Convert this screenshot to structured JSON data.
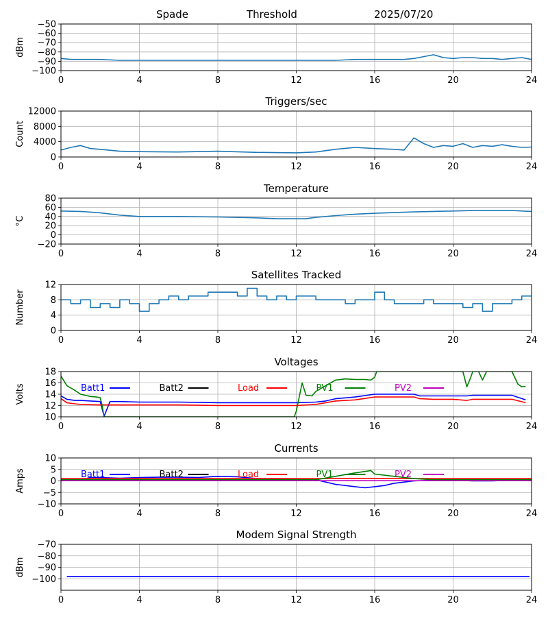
{
  "header": {
    "station": "Spade",
    "kind": "Threshold",
    "date": "2025/07/20"
  },
  "chart_data": [
    {
      "id": "threshold",
      "type": "line",
      "title": "",
      "xlabel": "",
      "ylabel": "dBm",
      "xlim": [
        0,
        24
      ],
      "ylim": [
        -100,
        -50
      ],
      "xticks": [
        0,
        4,
        8,
        12,
        16,
        20,
        24
      ],
      "yticks": [
        -100,
        -90,
        -80,
        -70,
        -60,
        -50
      ],
      "grid": true,
      "legend": [],
      "series": [
        {
          "color": "#1f77b4",
          "x": [
            0,
            0.5,
            1,
            1.5,
            2,
            3,
            4,
            6,
            8,
            10,
            12,
            13,
            14,
            15,
            16,
            17,
            17.5,
            18,
            18.5,
            19,
            19.5,
            20,
            20.5,
            21,
            21.5,
            22,
            22.5,
            23,
            23.5,
            24
          ],
          "y": [
            -87,
            -88,
            -88,
            -88,
            -88,
            -89,
            -89,
            -89,
            -89,
            -89,
            -89,
            -89,
            -89,
            -88,
            -88,
            -88,
            -88,
            -87,
            -85,
            -83,
            -86,
            -87,
            -86,
            -86,
            -87,
            -87,
            -88,
            -87,
            -86,
            -88
          ]
        }
      ]
    },
    {
      "id": "triggers",
      "type": "line",
      "title": "Triggers/sec",
      "xlabel": "",
      "ylabel": "Count",
      "xlim": [
        0,
        24
      ],
      "ylim": [
        0,
        12000
      ],
      "xticks": [
        0,
        4,
        8,
        12,
        16,
        20,
        24
      ],
      "yticks": [
        0,
        4000,
        8000,
        12000
      ],
      "grid": true,
      "legend": [],
      "series": [
        {
          "color": "#1f77b4",
          "x": [
            0,
            0.5,
            1,
            1.5,
            2,
            3,
            4,
            6,
            8,
            10,
            12,
            13,
            14,
            15,
            16,
            17,
            17.5,
            18,
            18.5,
            19,
            19.5,
            20,
            20.5,
            21,
            21.5,
            22,
            22.5,
            23,
            23.5,
            24
          ],
          "y": [
            1800,
            2500,
            3000,
            2200,
            2000,
            1500,
            1400,
            1300,
            1500,
            1200,
            1100,
            1300,
            2000,
            2500,
            2200,
            2000,
            1800,
            5000,
            3500,
            2500,
            3000,
            2800,
            3500,
            2500,
            3000,
            2800,
            3200,
            2800,
            2500,
            2600
          ]
        }
      ]
    },
    {
      "id": "temperature",
      "type": "line",
      "title": "Temperature",
      "xlabel": "",
      "ylabel": "°C",
      "xlim": [
        0,
        24
      ],
      "ylim": [
        -20,
        80
      ],
      "xticks": [
        0,
        4,
        8,
        12,
        16,
        20,
        24
      ],
      "yticks": [
        -20,
        0,
        20,
        40,
        60,
        80
      ],
      "grid": true,
      "legend": [],
      "series": [
        {
          "color": "#1f77b4",
          "x": [
            0,
            1,
            2,
            3,
            4,
            6,
            8,
            10,
            11,
            12,
            12.5,
            13,
            14,
            15,
            16,
            18,
            19,
            20,
            21,
            22,
            23,
            24
          ],
          "y": [
            52,
            51,
            48,
            43,
            40,
            40,
            39,
            37,
            35,
            35,
            35,
            38,
            42,
            45,
            47,
            50,
            51,
            52,
            53,
            53,
            53,
            51
          ]
        }
      ]
    },
    {
      "id": "satellites",
      "type": "line",
      "title": "Satellites Tracked",
      "xlabel": "",
      "ylabel": "Number",
      "xlim": [
        0,
        24
      ],
      "ylim": [
        0,
        12
      ],
      "xticks": [
        0,
        4,
        8,
        12,
        16,
        20,
        24
      ],
      "yticks": [
        0,
        4,
        8,
        12
      ],
      "grid": true,
      "legend": [],
      "series": [
        {
          "color": "#1f77b4",
          "step": true,
          "x": [
            0,
            0.5,
            1,
            1.5,
            2,
            2.5,
            3,
            3.5,
            4,
            4.5,
            5,
            5.5,
            6,
            6.5,
            7,
            7.5,
            8,
            8.5,
            9,
            9.5,
            10,
            10.5,
            11,
            11.5,
            12,
            12.5,
            13,
            13.5,
            14,
            14.5,
            15,
            15.5,
            16,
            16.5,
            17,
            17.5,
            18,
            18.5,
            19,
            19.5,
            20,
            20.5,
            21,
            21.5,
            22,
            22.5,
            23,
            23.5,
            24
          ],
          "y": [
            8,
            7,
            8,
            6,
            7,
            6,
            8,
            7,
            5,
            7,
            8,
            9,
            8,
            9,
            9,
            10,
            10,
            10,
            9,
            11,
            9,
            8,
            9,
            8,
            9,
            9,
            8,
            8,
            8,
            7,
            8,
            8,
            10,
            8,
            7,
            7,
            7,
            8,
            7,
            7,
            7,
            6,
            7,
            5,
            7,
            7,
            8,
            9,
            9
          ]
        }
      ]
    },
    {
      "id": "voltages",
      "type": "line",
      "title": "Voltages",
      "xlabel": "",
      "ylabel": "Volts",
      "xlim": [
        0,
        24
      ],
      "ylim": [
        10,
        18
      ],
      "xticks": [
        0,
        4,
        8,
        12,
        16,
        20,
        24
      ],
      "yticks": [
        10,
        12,
        14,
        16,
        18
      ],
      "grid": true,
      "legend": [
        {
          "name": "Batt1",
          "color": "#0000ff"
        },
        {
          "name": "Batt2",
          "color": "#000000"
        },
        {
          "name": "Load",
          "color": "#ff0000"
        },
        {
          "name": "PV1",
          "color": "#008000"
        },
        {
          "name": "PV2",
          "color": "#bf00bf"
        }
      ],
      "series": [
        {
          "color": "#0000ff",
          "x": [
            0,
            0.3,
            0.7,
            1,
            1.5,
            2,
            2.2,
            2.5,
            3,
            4,
            6,
            8,
            10,
            12,
            13,
            13.5,
            14,
            15,
            16,
            17,
            18,
            18.3,
            19,
            20,
            20.7,
            21,
            22,
            23,
            23.7
          ],
          "y": [
            13.7,
            13.1,
            12.9,
            12.9,
            12.8,
            12.7,
            10.1,
            12.7,
            12.7,
            12.6,
            12.6,
            12.5,
            12.5,
            12.5,
            12.6,
            12.8,
            13.2,
            13.5,
            14,
            14,
            14,
            13.7,
            13.7,
            13.7,
            13.7,
            13.8,
            13.8,
            13.8,
            13.0
          ]
        },
        {
          "color": "#ff0000",
          "x": [
            0,
            0.3,
            0.7,
            1,
            2,
            3,
            4,
            6,
            8,
            10,
            12,
            13,
            13.5,
            14,
            15,
            16,
            17,
            18,
            18.3,
            19,
            20,
            20.7,
            21,
            22,
            23,
            23.7
          ],
          "y": [
            13.2,
            12.5,
            12.3,
            12.2,
            12.1,
            12.1,
            12.1,
            12.1,
            12,
            12,
            12,
            12.2,
            12.5,
            12.8,
            13,
            13.5,
            13.5,
            13.5,
            13.2,
            13.1,
            13.1,
            12.9,
            13.1,
            13.1,
            13.1,
            12.5
          ]
        },
        {
          "color": "#008000",
          "x": [
            0,
            0.3,
            0.7,
            1,
            1.5,
            1.8,
            2,
            2.1,
            2.2,
            11.9,
            12,
            12.3,
            12.5,
            12.8,
            13,
            13.5,
            14,
            14.5,
            15,
            15.5,
            15.8,
            16,
            16.1,
            20.5,
            20.7,
            20.9,
            21,
            21.3,
            21.5,
            21.7,
            22,
            23,
            23.3,
            23.5,
            23.7
          ],
          "y": [
            17.2,
            15.5,
            14.7,
            14,
            13.6,
            13.5,
            13.4,
            12,
            10,
            10,
            11,
            16,
            13.8,
            13.7,
            14.5,
            15.5,
            16.5,
            16.7,
            16.6,
            16.6,
            16.5,
            17,
            18,
            18,
            15.3,
            17,
            18,
            18,
            16.5,
            18,
            18,
            18,
            15.8,
            15.3,
            15.4
          ]
        }
      ]
    },
    {
      "id": "currents",
      "type": "line",
      "title": "Currents",
      "xlabel": "",
      "ylabel": "Amps",
      "xlim": [
        0,
        24
      ],
      "ylim": [
        -10,
        10
      ],
      "xticks": [
        0,
        4,
        8,
        12,
        16,
        20,
        24
      ],
      "yticks": [
        -10,
        -5,
        0,
        5,
        10
      ],
      "grid": true,
      "legend": [
        {
          "name": "Batt1",
          "color": "#0000ff"
        },
        {
          "name": "Batt2",
          "color": "#000000"
        },
        {
          "name": "Load",
          "color": "#ff0000"
        },
        {
          "name": "PV1",
          "color": "#008000"
        },
        {
          "name": "PV2",
          "color": "#bf00bf"
        }
      ],
      "series": [
        {
          "color": "#0000ff",
          "x": [
            0,
            1,
            1.5,
            2,
            3,
            4,
            5,
            6,
            7,
            8,
            9,
            10,
            11,
            12,
            13,
            14,
            15,
            15.5,
            16,
            16.5,
            17,
            17.5,
            18,
            19,
            20,
            21,
            22,
            23,
            24
          ],
          "y": [
            0.5,
            0.5,
            1.5,
            1.5,
            1.2,
            1.5,
            1.6,
            1.6,
            1.5,
            2,
            1.8,
            1,
            0.8,
            0.5,
            0.5,
            -1.5,
            -2.5,
            -3,
            -2.5,
            -2,
            -1,
            -0.5,
            0,
            0.3,
            0.3,
            0,
            0,
            0.3,
            0.2
          ]
        },
        {
          "color": "#ff0000",
          "x": [
            0,
            4,
            8,
            12,
            16,
            20,
            24
          ],
          "y": [
            1,
            1,
            1,
            1,
            1,
            1,
            1
          ]
        },
        {
          "color": "#008000",
          "x": [
            0,
            12,
            13,
            14,
            15,
            15.8,
            16,
            17,
            18,
            19,
            20,
            21,
            22,
            23,
            24
          ],
          "y": [
            0.5,
            0.5,
            0.5,
            2,
            3.5,
            4.5,
            3,
            2,
            1,
            0.5,
            0.5,
            0.5,
            0.5,
            0.5,
            0.5
          ]
        },
        {
          "color": "#bf00bf",
          "x": [
            0,
            4,
            8,
            12,
            16,
            20,
            24
          ],
          "y": [
            0.1,
            0.1,
            0.1,
            0.1,
            0.1,
            0.1,
            0.1
          ]
        }
      ]
    },
    {
      "id": "modem",
      "type": "line",
      "title": "Modem Signal Strength",
      "xlabel": "",
      "ylabel": "dBm",
      "xlim": [
        0,
        24
      ],
      "ylim": [
        -110,
        -70
      ],
      "xticks": [
        0,
        4,
        8,
        12,
        16,
        20,
        24
      ],
      "yticks": [
        -100,
        -90,
        -80,
        -70
      ],
      "grid": true,
      "legend": [],
      "series": [
        {
          "color": "#0000ff",
          "x": [
            0.3,
            23.9
          ],
          "y": [
            -98,
            -98
          ]
        }
      ]
    }
  ]
}
